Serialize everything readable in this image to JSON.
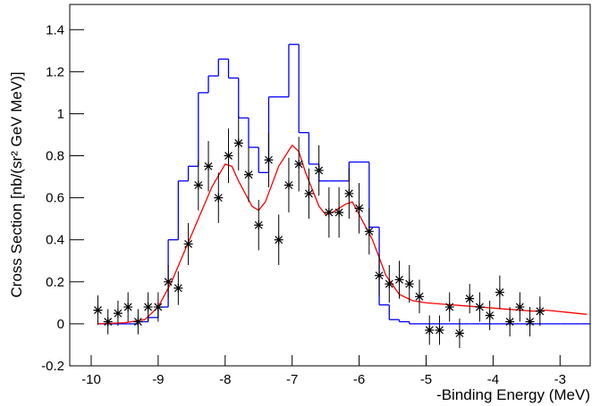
{
  "chart_data": {
    "type": "overlay",
    "x_label": "-Binding Energy (MeV)",
    "y_label": "Cross Section [nb/(sr² GeV MeV)]",
    "xlim": [
      -10.32,
      -2.55
    ],
    "ylim": [
      -0.2,
      1.52
    ],
    "xticks": [
      -10,
      -9,
      -8,
      -7,
      -6,
      -5,
      -4,
      -3
    ],
    "yticks": [
      -0.2,
      0,
      0.2,
      0.4,
      0.6,
      0.8,
      1,
      1.2,
      1.4
    ],
    "series": [
      {
        "type": "histogram",
        "color": "#0000ff",
        "bins": [
          -9.9,
          -9.75,
          -9.6,
          -9.45,
          -9.3,
          -9.15,
          -9.0,
          -8.85,
          -8.7,
          -8.55,
          -8.4,
          -8.25,
          -8.1,
          -7.95,
          -7.8,
          -7.65,
          -7.5,
          -7.35,
          -7.2,
          -7.05,
          -6.9,
          -6.75,
          -6.6,
          -6.45,
          -6.3,
          -6.15,
          -6.0,
          -5.85,
          -5.7,
          -5.55,
          -5.4,
          -5.25,
          -5.1,
          -4.95,
          -4.8,
          -4.65,
          -4.5,
          -4.35,
          -4.2,
          -4.05,
          -3.9,
          -3.75,
          -3.6,
          -3.45,
          -3.3,
          -3.15,
          -3.0,
          -2.85,
          -2.7,
          -2.55
        ],
        "values": [
          0,
          0,
          0,
          0,
          0.01,
          0.03,
          0.08,
          0.4,
          0.68,
          0.75,
          1.1,
          1.18,
          1.26,
          1.17,
          0.98,
          0.84,
          0.72,
          1.08,
          1.08,
          1.33,
          0.91,
          0.76,
          0.68,
          0.68,
          0.68,
          0.77,
          0.77,
          0.46,
          0.09,
          0.02,
          0.01,
          0,
          0,
          0,
          0,
          0,
          0,
          0,
          0,
          0,
          0,
          0,
          0,
          0,
          0,
          0,
          0,
          0,
          0
        ]
      },
      {
        "type": "line",
        "color": "#ff0000",
        "x": [
          -9.9,
          -9.5,
          -9.2,
          -9.0,
          -8.8,
          -8.6,
          -8.4,
          -8.2,
          -8.0,
          -7.9,
          -7.8,
          -7.6,
          -7.5,
          -7.4,
          -7.2,
          -7.0,
          -6.9,
          -6.8,
          -6.6,
          -6.5,
          -6.4,
          -6.2,
          -6.1,
          -6.0,
          -5.8,
          -5.6,
          -5.4,
          -5.2,
          -5.0,
          -4.6,
          -4.2,
          -3.8,
          -3.4,
          -3.2,
          -2.6
        ],
        "values": [
          0,
          0.005,
          0.02,
          0.08,
          0.2,
          0.35,
          0.5,
          0.65,
          0.76,
          0.75,
          0.68,
          0.56,
          0.54,
          0.58,
          0.75,
          0.85,
          0.82,
          0.72,
          0.56,
          0.52,
          0.53,
          0.57,
          0.58,
          0.52,
          0.4,
          0.23,
          0.14,
          0.11,
          0.1,
          0.09,
          0.08,
          0.07,
          0.06,
          0.065,
          0.045
        ]
      },
      {
        "type": "scatter",
        "color": "#000000",
        "x": [
          -9.9,
          -9.75,
          -9.6,
          -9.45,
          -9.3,
          -9.15,
          -9.0,
          -8.85,
          -8.7,
          -8.55,
          -8.4,
          -8.25,
          -8.1,
          -7.95,
          -7.8,
          -7.65,
          -7.5,
          -7.35,
          -7.2,
          -7.05,
          -6.9,
          -6.75,
          -6.6,
          -6.45,
          -6.3,
          -6.15,
          -6.0,
          -5.85,
          -5.7,
          -5.55,
          -5.4,
          -5.25,
          -5.1,
          -4.95,
          -4.8,
          -4.65,
          -4.5,
          -4.35,
          -4.2,
          -4.05,
          -3.9,
          -3.75,
          -3.6,
          -3.45,
          -3.3
        ],
        "values": [
          0.065,
          0.01,
          0.05,
          0.08,
          0.01,
          0.08,
          0.08,
          0.2,
          0.17,
          0.38,
          0.66,
          0.75,
          0.6,
          0.8,
          0.86,
          0.71,
          0.47,
          0.78,
          0.4,
          0.66,
          0.76,
          0.62,
          0.73,
          0.53,
          0.53,
          0.62,
          0.55,
          0.44,
          0.23,
          0.19,
          0.21,
          0.19,
          0.13,
          -0.03,
          -0.03,
          0.08,
          -0.045,
          0.12,
          0.08,
          0.04,
          0.15,
          0.01,
          0.08,
          0.01,
          0.06
        ],
        "errors": [
          0.07,
          0.06,
          0.06,
          0.07,
          0.06,
          0.07,
          0.07,
          0.08,
          0.08,
          0.1,
          0.12,
          0.12,
          0.12,
          0.13,
          0.13,
          0.13,
          0.12,
          0.13,
          0.12,
          0.13,
          0.13,
          0.12,
          0.12,
          0.12,
          0.12,
          0.12,
          0.12,
          0.11,
          0.1,
          0.09,
          0.09,
          0.09,
          0.08,
          0.07,
          0.07,
          0.07,
          0.07,
          0.07,
          0.07,
          0.07,
          0.08,
          0.07,
          0.07,
          0.07,
          0.07
        ]
      }
    ]
  }
}
